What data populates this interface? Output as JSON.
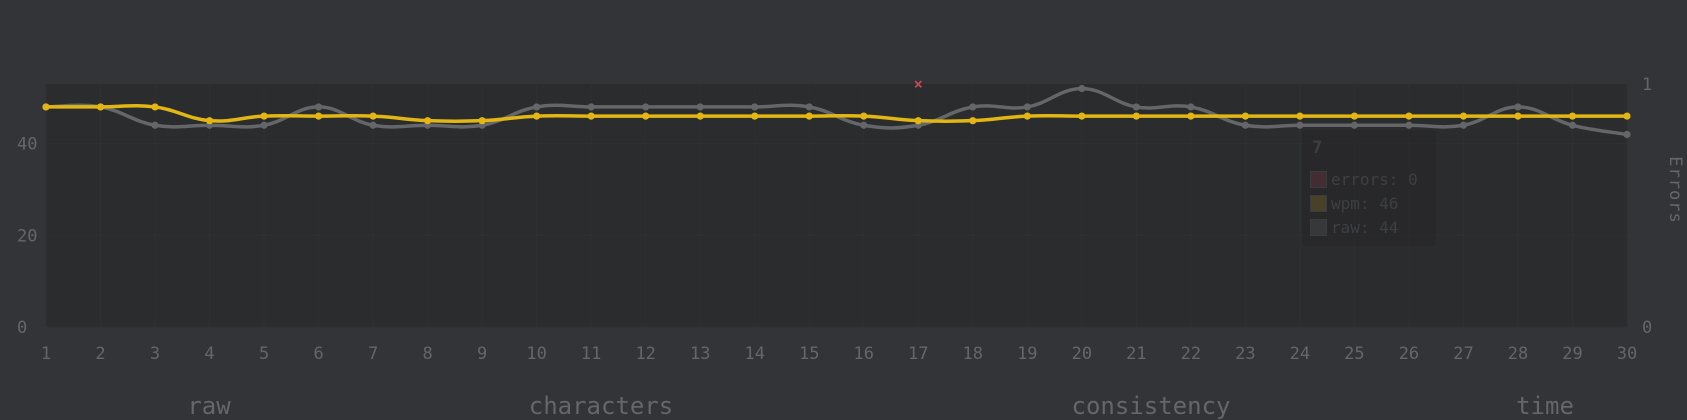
{
  "chart_data": {
    "type": "line",
    "x": [
      1,
      2,
      3,
      4,
      5,
      6,
      7,
      8,
      9,
      10,
      11,
      12,
      13,
      14,
      15,
      16,
      17,
      18,
      19,
      20,
      21,
      22,
      23,
      24,
      25,
      26,
      27,
      28,
      29,
      30
    ],
    "series": [
      {
        "name": "wpm",
        "color": "#e2b714",
        "values": [
          48,
          48,
          48,
          45,
          46,
          46,
          46,
          45,
          45,
          46,
          46,
          46,
          46,
          46,
          46,
          46,
          45,
          45,
          46,
          46,
          46,
          46,
          46,
          46,
          46,
          46,
          46,
          46,
          46,
          46
        ]
      },
      {
        "name": "raw",
        "color": "#646669",
        "values": [
          48,
          48,
          44,
          44,
          44,
          48,
          44,
          44,
          44,
          48,
          48,
          48,
          48,
          48,
          48,
          44,
          44,
          48,
          48,
          52,
          48,
          48,
          44,
          44,
          44,
          44,
          44,
          48,
          44,
          42
        ]
      },
      {
        "name": "errors",
        "color": "#ca4754",
        "marker": "x",
        "points": [
          {
            "x": 17,
            "y": 1
          }
        ]
      }
    ],
    "y_left": {
      "ticks": [
        0,
        20,
        40
      ],
      "range": [
        0,
        53
      ]
    },
    "y_right": {
      "label": "Errors",
      "ticks": [
        0,
        1
      ],
      "range": [
        0,
        1
      ]
    },
    "x_ticks": [
      "1",
      "2",
      "3",
      "4",
      "5",
      "6",
      "7",
      "8",
      "9",
      "10",
      "11",
      "12",
      "13",
      "14",
      "15",
      "16",
      "17",
      "18",
      "19",
      "20",
      "21",
      "22",
      "23",
      "24",
      "25",
      "26",
      "27",
      "28",
      "29",
      "30"
    ],
    "grid": true,
    "tooltip": {
      "title": "7",
      "rows": [
        {
          "label": "errors: 0",
          "color": "#ca4754"
        },
        {
          "label": "wpm: 46",
          "color": "#e2b714"
        },
        {
          "label": "raw: 44",
          "color": "#646669"
        }
      ]
    }
  },
  "stats": {
    "labels": [
      "raw",
      "characters",
      "consistency",
      "time"
    ]
  }
}
